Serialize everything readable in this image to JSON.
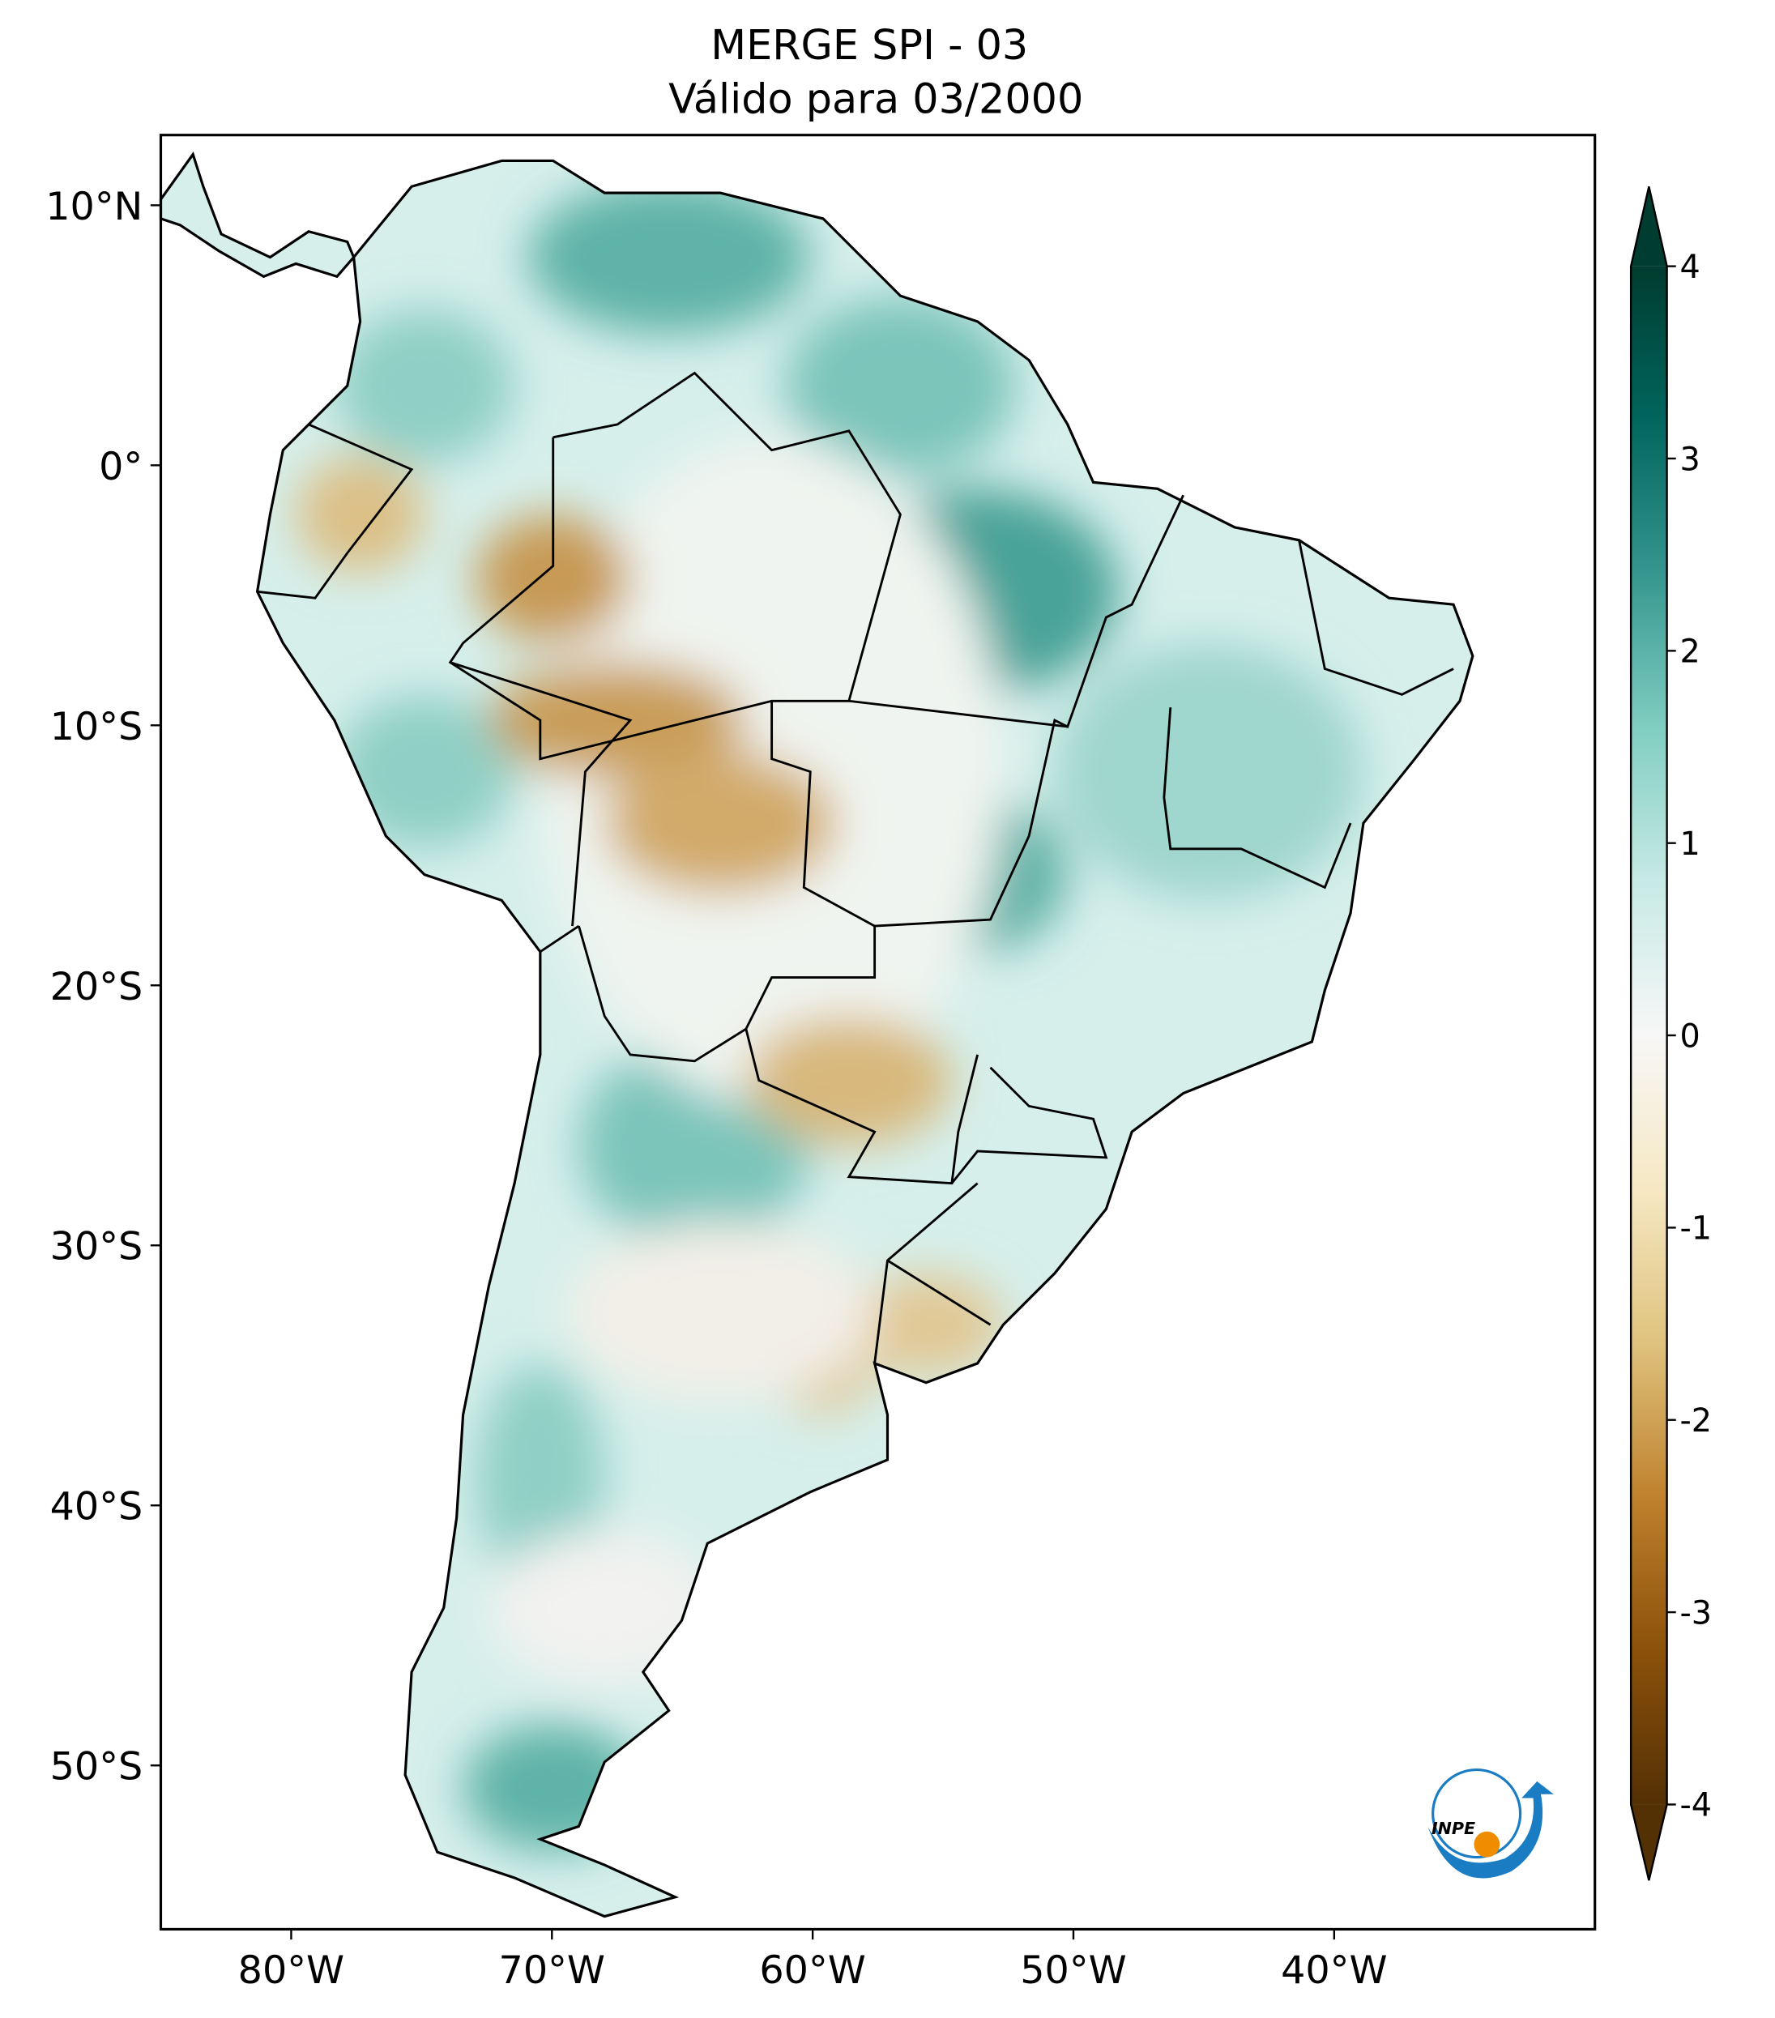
{
  "title": "MERGE   SPI - 03",
  "subtitle": "Válido para 03/2000",
  "map": {
    "xlim": [
      -85,
      -30
    ],
    "ylim": [
      -56.3,
      12.7
    ],
    "xticks": [
      {
        "value": -80,
        "label": "80°W"
      },
      {
        "value": -70,
        "label": "70°W"
      },
      {
        "value": -60,
        "label": "60°W"
      },
      {
        "value": -50,
        "label": "50°W"
      },
      {
        "value": -40,
        "label": "40°W"
      }
    ],
    "yticks": [
      {
        "value": 10,
        "label": "10°N"
      },
      {
        "value": 0,
        "label": "0°"
      },
      {
        "value": -10,
        "label": "10°S"
      },
      {
        "value": -20,
        "label": "20°S"
      },
      {
        "value": -30,
        "label": "30°S"
      },
      {
        "value": -40,
        "label": "40°S"
      },
      {
        "value": -50,
        "label": "50°S"
      }
    ]
  },
  "colorbar": {
    "lim": [
      -4,
      4
    ],
    "ticks": [
      -4,
      -3,
      -2,
      -1,
      0,
      1,
      2,
      3,
      4
    ],
    "colors": [
      "#543005",
      "#8c510a",
      "#bf812d",
      "#dfc27d",
      "#f6e8c3",
      "#f7f7f7",
      "#c7eae5",
      "#80cdc1",
      "#35978f",
      "#01665e",
      "#003c30"
    ]
  },
  "logo": "INPE"
}
